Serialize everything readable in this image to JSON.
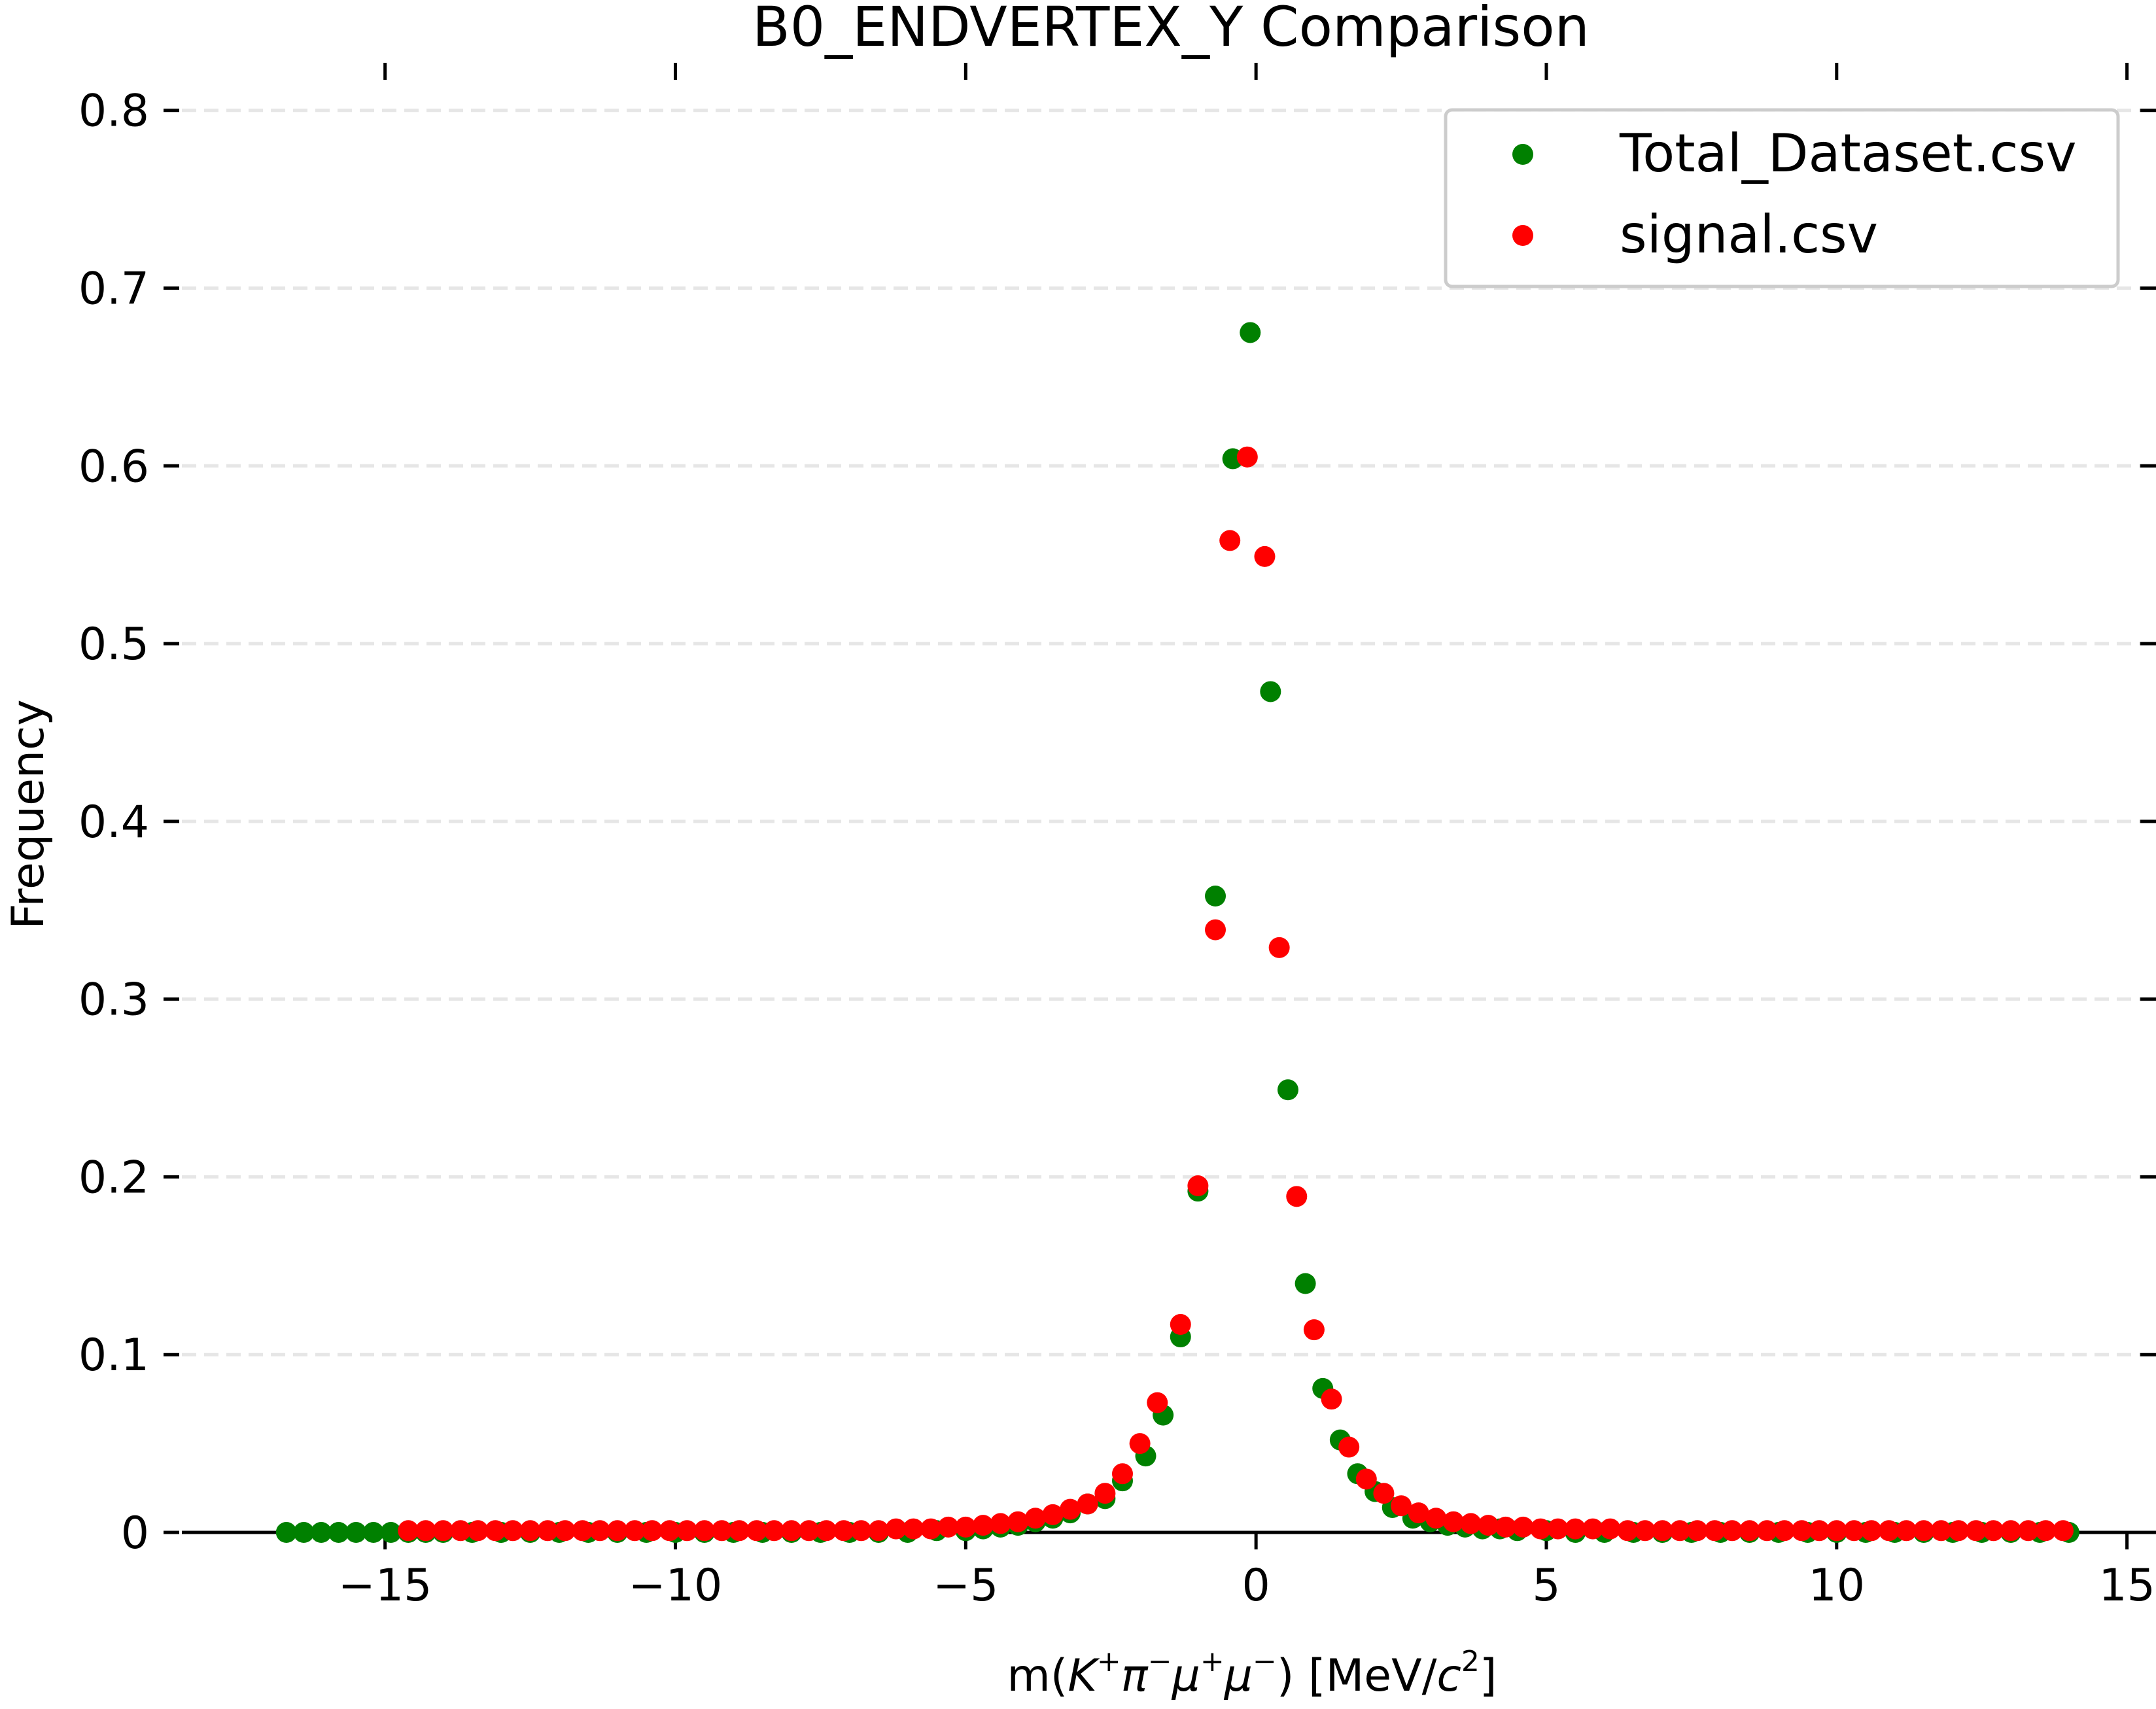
{
  "chart_data": {
    "type": "scatter",
    "title": "B0_ENDVERTEX_Y Comparison",
    "xlabel": {
      "prefix": "m(",
      "k": "K",
      "pi": "π",
      "mu": "μ",
      "suffix_open": ") [MeV/",
      "c": "c",
      "sq": "2",
      "suffix_close": "]",
      "plus": "+",
      "minus": "−"
    },
    "ylabel": "Frequency",
    "xlim": [
      -18.5,
      15.5
    ],
    "ylim": [
      0,
      0.84
    ],
    "xticks": [
      -15,
      -10,
      -5,
      0,
      5,
      10,
      15
    ],
    "xtick_labels": [
      "−15",
      "−10",
      "−5",
      "0",
      "5",
      "10",
      "15"
    ],
    "yticks": [
      0,
      0.1,
      0.2,
      0.3,
      0.4,
      0.5,
      0.6,
      0.7,
      0.8
    ],
    "ytick_labels": [
      "0",
      "0.1",
      "0.2",
      "0.3",
      "0.4",
      "0.5",
      "0.6",
      "0.7",
      "0.8"
    ],
    "grid": "horizontal-dashed",
    "legend_position": "top-right",
    "series": [
      {
        "name": "Total_Dataset.csv",
        "color": "#008000",
        "x": [
          -16.7,
          -16.4,
          -16.1,
          -15.8,
          -15.5,
          -15.2,
          -14.9,
          -14.6,
          -14.3,
          -14.0,
          -13.5,
          -13.0,
          -12.5,
          -12.0,
          -11.5,
          -11.0,
          -10.5,
          -10.0,
          -9.5,
          -9.0,
          -8.5,
          -8.0,
          -7.5,
          -7.0,
          -6.5,
          -6.0,
          -5.5,
          -5.0,
          -4.7,
          -4.4,
          -4.1,
          -3.8,
          -3.5,
          -3.2,
          -2.9,
          -2.6,
          -2.3,
          -1.9,
          -1.6,
          -1.3,
          -1.0,
          -0.7,
          -0.4,
          -0.1,
          0.25,
          0.55,
          0.85,
          1.15,
          1.45,
          1.75,
          2.05,
          2.35,
          2.7,
          3.0,
          3.3,
          3.6,
          3.9,
          4.2,
          4.5,
          5.0,
          5.5,
          6.0,
          6.5,
          7.0,
          7.5,
          8.0,
          8.5,
          9.0,
          9.5,
          10.0,
          10.5,
          11.0,
          11.5,
          12.0,
          12.5,
          13.0,
          13.5,
          14.0
        ],
        "y": [
          0,
          0,
          0,
          0,
          0,
          0,
          0,
          0,
          0,
          0,
          0,
          0,
          0,
          0,
          0,
          0,
          0,
          0,
          0,
          0,
          0,
          0,
          0,
          0,
          0,
          0,
          0.001,
          0.001,
          0.002,
          0.003,
          0.004,
          0.006,
          0.008,
          0.011,
          0.016,
          0.019,
          0.029,
          0.043,
          0.066,
          0.11,
          0.192,
          0.358,
          0.604,
          0.675,
          0.473,
          0.249,
          0.14,
          0.081,
          0.052,
          0.033,
          0.023,
          0.014,
          0.008,
          0.006,
          0.004,
          0.003,
          0.002,
          0.002,
          0.001,
          0.001,
          0,
          0,
          0,
          0,
          0,
          0,
          0,
          0,
          0,
          0,
          0,
          0,
          0,
          0,
          0,
          0,
          0,
          0
        ]
      },
      {
        "name": "signal.csv",
        "color": "#ff0000",
        "x": [
          -14.6,
          -14.3,
          -14.0,
          -13.7,
          -13.4,
          -13.1,
          -12.8,
          -12.5,
          -12.2,
          -11.9,
          -11.6,
          -11.3,
          -11.0,
          -10.7,
          -10.4,
          -10.1,
          -9.8,
          -9.5,
          -9.2,
          -8.9,
          -8.6,
          -8.3,
          -8.0,
          -7.7,
          -7.4,
          -7.1,
          -6.8,
          -6.5,
          -6.2,
          -5.9,
          -5.6,
          -5.3,
          -5.0,
          -4.7,
          -4.4,
          -4.1,
          -3.8,
          -3.5,
          -3.2,
          -2.9,
          -2.6,
          -2.3,
          -2.0,
          -1.7,
          -1.3,
          -1.0,
          -0.7,
          -0.45,
          -0.15,
          0.15,
          0.4,
          0.7,
          1.0,
          1.3,
          1.6,
          1.9,
          2.2,
          2.5,
          2.8,
          3.1,
          3.4,
          3.7,
          4.0,
          4.3,
          4.6,
          4.9,
          5.2,
          5.5,
          5.8,
          6.1,
          6.4,
          6.7,
          7.0,
          7.3,
          7.6,
          7.9,
          8.2,
          8.5,
          8.8,
          9.1,
          9.4,
          9.7,
          10.0,
          10.3,
          10.6,
          10.9,
          11.2,
          11.5,
          11.8,
          12.1,
          12.4,
          12.7,
          13.0,
          13.3,
          13.6,
          13.9
        ],
        "y": [
          0.001,
          0.001,
          0.001,
          0.001,
          0.001,
          0.001,
          0.001,
          0.001,
          0.001,
          0.001,
          0.001,
          0.001,
          0.001,
          0.001,
          0.001,
          0.001,
          0.001,
          0.001,
          0.001,
          0.001,
          0.001,
          0.001,
          0.001,
          0.001,
          0.001,
          0.001,
          0.001,
          0.001,
          0.002,
          0.002,
          0.002,
          0.003,
          0.003,
          0.004,
          0.005,
          0.006,
          0.008,
          0.01,
          0.013,
          0.016,
          0.022,
          0.033,
          0.05,
          0.073,
          0.117,
          0.195,
          0.339,
          0.558,
          0.605,
          0.549,
          0.329,
          0.189,
          0.114,
          0.075,
          0.048,
          0.03,
          0.022,
          0.015,
          0.011,
          0.008,
          0.006,
          0.005,
          0.004,
          0.003,
          0.003,
          0.002,
          0.002,
          0.002,
          0.002,
          0.002,
          0.001,
          0.001,
          0.001,
          0.001,
          0.001,
          0.001,
          0.001,
          0.001,
          0.001,
          0.001,
          0.001,
          0.001,
          0.001,
          0.001,
          0.001,
          0.001,
          0.001,
          0.001,
          0.001,
          0.001,
          0.001,
          0.001,
          0.001,
          0.001,
          0.001,
          0.001
        ]
      }
    ]
  }
}
